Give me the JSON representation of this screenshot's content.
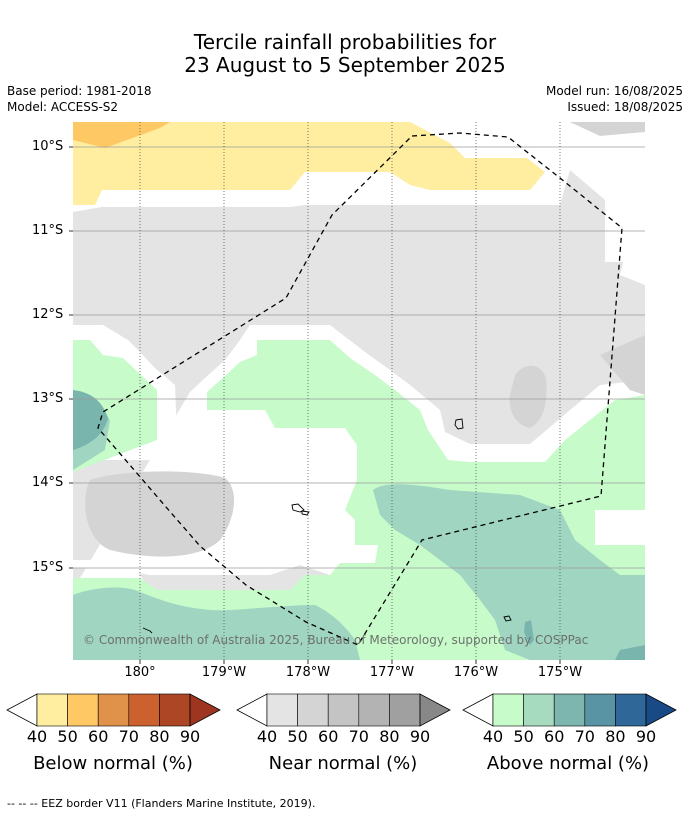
{
  "title_line1": "Tercile rainfall probabilities for",
  "title_line2": "23 August to 5 September 2025",
  "meta_left": {
    "base_period": "Base period: 1981-2018",
    "model": "Model: ACCESS-S2"
  },
  "meta_right": {
    "model_run": "Model run: 16/08/2025",
    "issued": "Issued: 18/08/2025"
  },
  "map": {
    "lat_labels": [
      "10°S",
      "11°S",
      "12°S",
      "13°S",
      "14°S",
      "15°S"
    ],
    "lon_labels": [
      "180°",
      "179°W",
      "178°W",
      "177°W",
      "176°W",
      "175°W"
    ],
    "copyright": "© Commonwealth of Australia 2025, Bureau of Meteorology, supported by COSPPac",
    "colors": {
      "below_40": "#ffeda0",
      "below_50": "#fec965",
      "near_40": "#e4e4e4",
      "near_50": "#d4d4d4",
      "above_40": "#c7fcca",
      "above_50": "#a0d5c1",
      "above_60": "#7ab5ad"
    }
  },
  "colorbars": [
    {
      "title": "Below normal (%)",
      "ticks": [
        "40",
        "50",
        "60",
        "70",
        "80",
        "90"
      ],
      "colors": [
        "#ffeda0",
        "#fec965",
        "#e0914a",
        "#cc6130",
        "#ac4624",
        "#9e3520"
      ]
    },
    {
      "title": "Near normal (%)",
      "ticks": [
        "40",
        "50",
        "60",
        "70",
        "80",
        "90"
      ],
      "colors": [
        "#e4e4e4",
        "#d4d4d4",
        "#c4c4c4",
        "#b3b3b3",
        "#a0a0a0",
        "#888888"
      ]
    },
    {
      "title": "Above normal (%)",
      "ticks": [
        "40",
        "50",
        "60",
        "70",
        "80",
        "90"
      ],
      "colors": [
        "#c7fcca",
        "#a6dbbf",
        "#7db6af",
        "#5994a5",
        "#2f6798",
        "#1a4a86"
      ]
    }
  ],
  "footnote": "-- -- -- EEZ border V11 (Flanders Marine Institute, 2019)."
}
